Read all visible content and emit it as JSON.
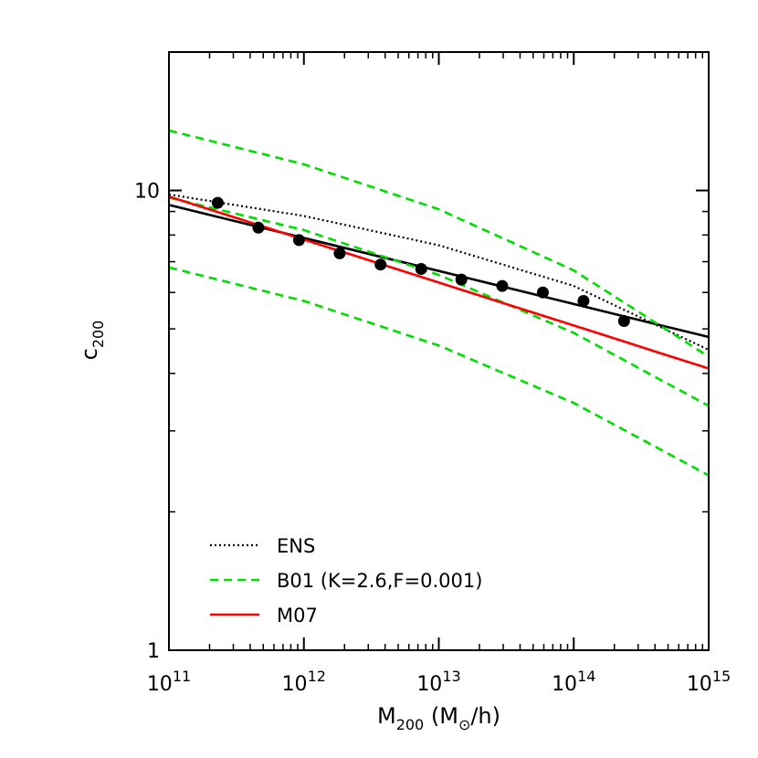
{
  "chart_data": {
    "type": "line",
    "x_scale": "log",
    "y_scale": "log",
    "xlim": [
      100000000000.0,
      1000000000000000.0
    ],
    "ylim": [
      1,
      20
    ],
    "xlabel": {
      "main": "M",
      "sub": "200",
      "unit_open": "(M",
      "unit_sub": "⊙",
      "unit_close": "/h)"
    },
    "ylabel": {
      "main": "c",
      "sub": "200"
    },
    "x_ticks": [
      {
        "value": 100000000000.0,
        "base": "10",
        "exp": "11"
      },
      {
        "value": 1000000000000.0,
        "base": "10",
        "exp": "12"
      },
      {
        "value": 10000000000000.0,
        "base": "10",
        "exp": "13"
      },
      {
        "value": 100000000000000.0,
        "base": "10",
        "exp": "14"
      },
      {
        "value": 1000000000000000.0,
        "base": "10",
        "exp": "15"
      }
    ],
    "y_ticks": [
      {
        "value": 1,
        "label": "1"
      },
      {
        "value": 10,
        "label": "10"
      }
    ],
    "legend": {
      "placement": "bottom-left",
      "entries": [
        {
          "label": "ENS",
          "color": "#000000",
          "style": "dotted"
        },
        {
          "label": "B01 (K=2.6,F=0.001)",
          "color": "#00dd00",
          "style": "dashed"
        },
        {
          "label": "M07",
          "color": "#ff0000",
          "style": "solid"
        }
      ]
    },
    "series": [
      {
        "name": "data points",
        "type": "scatter",
        "color": "#000000",
        "x": [
          230000000000.0,
          460000000000.0,
          920000000000.0,
          1840000000000.0,
          3700000000000.0,
          7400000000000.0,
          14700000000000.0,
          29500000000000.0,
          59000000000000.0,
          118000000000000.0,
          236000000000000.0
        ],
        "y": [
          9.4,
          8.3,
          7.8,
          7.3,
          6.9,
          6.75,
          6.4,
          6.2,
          6.0,
          5.75,
          5.2
        ]
      },
      {
        "name": "power-law fit",
        "type": "line",
        "color": "#000000",
        "style": "solid",
        "x": [
          100000000000.0,
          1000000000000000.0
        ],
        "y": [
          9.3,
          4.8
        ]
      },
      {
        "name": "ENS",
        "type": "line",
        "color": "#000000",
        "style": "dotted",
        "x": [
          100000000000.0,
          1000000000000.0,
          10000000000000.0,
          100000000000000.0,
          1000000000000000.0
        ],
        "y": [
          9.8,
          8.8,
          7.6,
          6.2,
          4.5
        ]
      },
      {
        "name": "B01 (K=2.6,F=0.001)",
        "type": "line",
        "color": "#00dd00",
        "style": "dashed",
        "x": [
          100000000000.0,
          1000000000000.0,
          10000000000000.0,
          100000000000000.0,
          1000000000000000.0
        ],
        "y": [
          13.5,
          11.4,
          9.1,
          6.7,
          4.35
        ]
      },
      {
        "name": "B01 (K=2.6,F=0.001)",
        "type": "line",
        "color": "#00dd00",
        "style": "dashed",
        "x": [
          100000000000.0,
          1000000000000.0,
          10000000000000.0,
          100000000000000.0,
          1000000000000000.0
        ],
        "y": [
          9.65,
          8.2,
          6.55,
          4.9,
          3.4
        ]
      },
      {
        "name": "B01 (K=2.6,F=0.001)",
        "type": "line",
        "color": "#00dd00",
        "style": "dashed",
        "x": [
          100000000000.0,
          1000000000000.0,
          10000000000000.0,
          100000000000000.0,
          1000000000000000.0
        ],
        "y": [
          6.8,
          5.75,
          4.6,
          3.45,
          2.4
        ]
      },
      {
        "name": "M07",
        "type": "line",
        "color": "#ff0000",
        "style": "solid",
        "x": [
          100000000000.0,
          1000000000000000.0
        ],
        "y": [
          9.7,
          4.1
        ]
      }
    ]
  }
}
